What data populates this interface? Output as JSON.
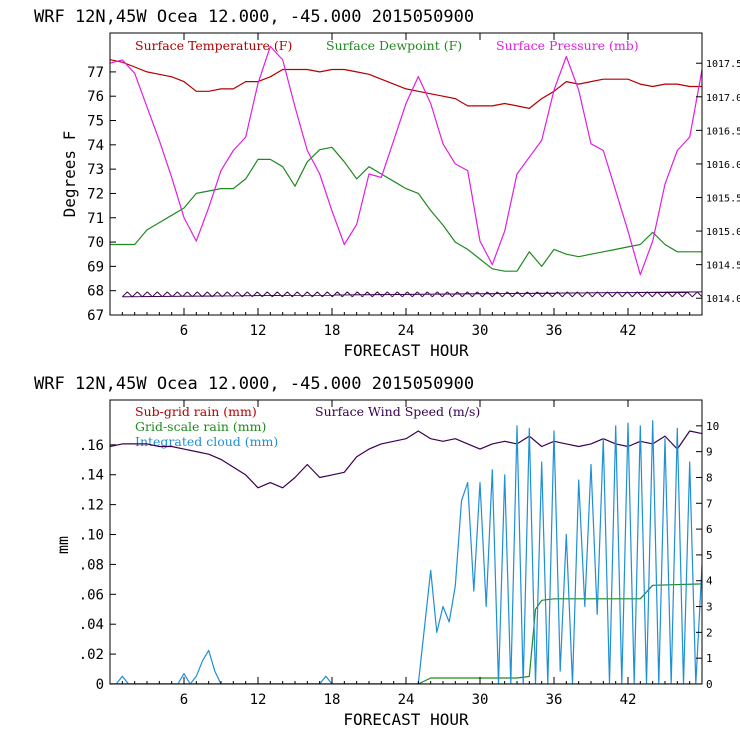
{
  "colors": {
    "axis": "#000000",
    "temperature": "#b30000",
    "dewpoint": "#1f8a1f",
    "pressure": "#e01ee0",
    "subgrid": "#b30000",
    "wind": "#3a0050",
    "gridscale": "#1f8a1f",
    "cloud": "#1f8fd6"
  },
  "chart_data": [
    {
      "type": "line",
      "title": "WRF   12N,45W Ocea  12.000, -45.000  2015050900",
      "xlabel": "FORECAST HOUR",
      "ylabel": "Degrees F",
      "xlim": [
        0,
        48
      ],
      "ylim": [
        67,
        78.6
      ],
      "xticks": [
        6,
        12,
        18,
        24,
        30,
        36,
        42
      ],
      "xtick_labels": [
        "6",
        "12",
        "18",
        "24",
        "30",
        "36",
        "42"
      ],
      "yticks": [
        67,
        68,
        69,
        70,
        71,
        72,
        73,
        74,
        75,
        76,
        77
      ],
      "ytick_labels": [
        "67",
        "68",
        "69",
        "70",
        "71",
        "72",
        "73",
        "74",
        "75",
        "76",
        "77"
      ],
      "y2lim": [
        1013.75,
        1017.95
      ],
      "y2ticks": [
        1014.0,
        1014.5,
        1015.0,
        1015.5,
        1016.0,
        1016.5,
        1017.0,
        1017.5
      ],
      "y2tick_labels": [
        "1014.0",
        "1014.5",
        "1015.0",
        "1015.5",
        "1016.0",
        "1016.5",
        "1017.0",
        "1017.5"
      ],
      "legend": [
        {
          "label": "Surface Temperature (F)",
          "color": "#b30000"
        },
        {
          "label": "Surface Dewpoint (F)",
          "color": "#1f8a1f"
        },
        {
          "label": "Surface Pressure (mb)",
          "color": "#e01ee0"
        }
      ],
      "series": [
        {
          "name": "Surface Temperature (F)",
          "axis": "left",
          "color": "#b30000",
          "x": [
            0,
            1,
            2,
            3,
            4,
            5,
            6,
            7,
            8,
            9,
            10,
            11,
            12,
            13,
            14,
            15,
            16,
            17,
            18,
            19,
            20,
            21,
            22,
            23,
            24,
            25,
            26,
            27,
            28,
            29,
            30,
            31,
            32,
            33,
            34,
            35,
            36,
            37,
            38,
            39,
            40,
            41,
            42,
            43,
            44,
            45,
            46,
            47,
            48
          ],
          "values": [
            77.5,
            77.4,
            77.2,
            77.0,
            76.9,
            76.8,
            76.6,
            76.2,
            76.2,
            76.3,
            76.3,
            76.6,
            76.6,
            76.8,
            77.1,
            77.1,
            77.1,
            77.0,
            77.1,
            77.1,
            77.0,
            76.9,
            76.7,
            76.5,
            76.3,
            76.2,
            76.1,
            76.0,
            75.9,
            75.6,
            75.6,
            75.6,
            75.7,
            75.6,
            75.5,
            75.9,
            76.2,
            76.6,
            76.5,
            76.6,
            76.7,
            76.7,
            76.7,
            76.5,
            76.4,
            76.5,
            76.5,
            76.4,
            76.4
          ]
        },
        {
          "name": "Surface Dewpoint (F)",
          "axis": "left",
          "color": "#1f8a1f",
          "x": [
            0,
            1,
            2,
            3,
            4,
            5,
            6,
            7,
            8,
            9,
            10,
            11,
            12,
            13,
            14,
            15,
            16,
            17,
            18,
            19,
            20,
            21,
            22,
            23,
            24,
            25,
            26,
            27,
            28,
            29,
            30,
            31,
            32,
            33,
            34,
            35,
            36,
            37,
            38,
            39,
            40,
            41,
            42,
            43,
            44,
            45,
            46,
            47,
            48
          ],
          "values": [
            69.9,
            69.9,
            69.9,
            70.5,
            70.8,
            71.1,
            71.4,
            72.0,
            72.1,
            72.2,
            72.2,
            72.6,
            73.4,
            73.4,
            73.1,
            72.3,
            73.3,
            73.8,
            73.9,
            73.3,
            72.6,
            73.1,
            72.8,
            72.5,
            72.2,
            72.0,
            71.3,
            70.7,
            70.0,
            69.7,
            69.3,
            68.9,
            68.8,
            68.8,
            69.6,
            69.0,
            69.7,
            69.5,
            69.4,
            69.5,
            69.6,
            69.7,
            69.8,
            69.9,
            70.4,
            69.9,
            69.6,
            69.6,
            69.6
          ]
        },
        {
          "name": "Surface Pressure (mb)",
          "axis": "right",
          "color": "#e01ee0",
          "x": [
            0,
            1,
            2,
            3,
            4,
            5,
            6,
            7,
            8,
            9,
            10,
            11,
            12,
            13,
            14,
            15,
            16,
            17,
            18,
            19,
            20,
            21,
            22,
            23,
            24,
            25,
            26,
            27,
            28,
            29,
            30,
            31,
            32,
            33,
            34,
            35,
            36,
            37,
            38,
            39,
            40,
            41,
            42,
            43,
            44,
            45,
            46,
            47,
            48
          ],
          "values": [
            1017.5,
            1017.55,
            1017.35,
            1016.85,
            1016.35,
            1015.8,
            1015.2,
            1014.85,
            1015.35,
            1015.9,
            1016.2,
            1016.4,
            1017.2,
            1017.75,
            1017.55,
            1016.85,
            1016.2,
            1015.85,
            1015.3,
            1014.8,
            1015.1,
            1015.85,
            1015.8,
            1016.35,
            1016.9,
            1017.3,
            1016.9,
            1016.3,
            1016.0,
            1015.9,
            1014.85,
            1014.5,
            1015.0,
            1015.85,
            1016.1,
            1016.35,
            1017.1,
            1017.6,
            1017.1,
            1016.3,
            1016.2,
            1015.6,
            1015.0,
            1014.35,
            1014.85,
            1015.7,
            1016.2,
            1016.4,
            1017.4
          ]
        },
        {
          "name": "Hatched base band",
          "axis": "left",
          "color": "#3a0050",
          "x": [
            1,
            48
          ],
          "values": [
            67.75,
            67.95
          ]
        }
      ]
    },
    {
      "type": "line",
      "title": "WRF   12N,45W Ocea  12.000, -45.000  2015050900",
      "xlabel": "FORECAST HOUR",
      "ylabel": "mm",
      "xlim": [
        0,
        48
      ],
      "ylim": [
        0,
        0.19
      ],
      "xticks": [
        6,
        12,
        18,
        24,
        30,
        36,
        42
      ],
      "xtick_labels": [
        "6",
        "12",
        "18",
        "24",
        "30",
        "36",
        "42"
      ],
      "yticks": [
        0,
        0.02,
        0.04,
        0.06,
        0.08,
        0.1,
        0.12,
        0.14,
        0.16
      ],
      "ytick_labels": [
        "0",
        ".02",
        ".04",
        ".06",
        ".08",
        ".10",
        ".12",
        ".14",
        ".16"
      ],
      "y2lim": [
        0,
        11
      ],
      "y2ticks": [
        0,
        1,
        2,
        3,
        4,
        5,
        6,
        7,
        8,
        9,
        10
      ],
      "y2tick_labels": [
        "0",
        "1",
        "2",
        "3",
        "4",
        "5",
        "6",
        "7",
        "8",
        "9",
        "10"
      ],
      "legend": [
        {
          "label": "Sub-grid rain (mm)",
          "color": "#b30000"
        },
        {
          "label": "Surface Wind Speed (m/s)",
          "color": "#3a0050"
        },
        {
          "label": "Grid-scale rain (mm)",
          "color": "#1f8a1f"
        },
        {
          "label": "Integrated cloud (mm)",
          "color": "#1f8fd6"
        }
      ],
      "series": [
        {
          "name": "Sub-grid rain (mm)",
          "axis": "left",
          "color": "#b30000",
          "x": [
            0,
            48
          ],
          "values": [
            0,
            0
          ]
        },
        {
          "name": "Grid-scale rain (mm)",
          "axis": "left",
          "color": "#1f8a1f",
          "x": [
            0,
            25,
            26,
            33,
            34,
            34.5,
            35,
            36,
            43,
            44,
            48
          ],
          "values": [
            0,
            0,
            0.004,
            0.004,
            0.005,
            0.05,
            0.056,
            0.057,
            0.057,
            0.066,
            0.067
          ]
        },
        {
          "name": "Surface Wind Speed (m/s)",
          "axis": "right",
          "color": "#3a0050",
          "x": [
            0,
            1,
            2,
            3,
            4,
            5,
            6,
            7,
            8,
            9,
            10,
            11,
            12,
            13,
            14,
            15,
            16,
            17,
            18,
            19,
            20,
            21,
            22,
            23,
            24,
            25,
            26,
            27,
            28,
            29,
            30,
            31,
            32,
            33,
            34,
            35,
            36,
            37,
            38,
            39,
            40,
            41,
            42,
            43,
            44,
            45,
            46,
            47,
            48
          ],
          "values": [
            9.2,
            9.3,
            9.3,
            9.3,
            9.2,
            9.2,
            9.1,
            9.0,
            8.9,
            8.7,
            8.4,
            8.1,
            7.6,
            7.8,
            7.6,
            8.0,
            8.5,
            8.0,
            8.1,
            8.2,
            8.8,
            9.1,
            9.3,
            9.4,
            9.5,
            9.8,
            9.5,
            9.4,
            9.5,
            9.3,
            9.1,
            9.3,
            9.4,
            9.3,
            9.6,
            9.2,
            9.4,
            9.3,
            9.2,
            9.3,
            9.5,
            9.3,
            9.2,
            9.4,
            9.3,
            9.6,
            9.1,
            9.8,
            9.7
          ]
        },
        {
          "name": "Integrated cloud (mm)",
          "axis": "right",
          "color": "#1f8fd6",
          "x": [
            0,
            0.5,
            1,
            1.5,
            2,
            5.5,
            6,
            6.5,
            7,
            7.5,
            8,
            8.5,
            9,
            9.5,
            10,
            17,
            17.5,
            18,
            25,
            26,
            26.5,
            27,
            27.5,
            28,
            28.5,
            29,
            29.5,
            30,
            30.5,
            31,
            31.5,
            32,
            32.5,
            33,
            33.5,
            34,
            34.5,
            35,
            35.5,
            36,
            36.5,
            37,
            37.5,
            38,
            38.5,
            39,
            39.5,
            40,
            40.5,
            41,
            41.5,
            42,
            42.5,
            43,
            43.5,
            44,
            44.5,
            45,
            45.5,
            46,
            46.5,
            47,
            47.5,
            48
          ],
          "values": [
            0,
            0,
            0.3,
            0,
            0,
            0,
            0.4,
            0,
            0.3,
            0.9,
            1.3,
            0.5,
            0,
            0,
            0,
            0,
            0.3,
            0,
            0,
            4.4,
            2.0,
            3.0,
            2.4,
            3.8,
            7.1,
            7.8,
            3.6,
            7.8,
            3.0,
            8.3,
            0,
            8.1,
            0,
            10.0,
            0,
            9.9,
            0,
            8.6,
            0,
            9.8,
            0.5,
            5.8,
            0,
            7.9,
            3.0,
            8.5,
            2.7,
            9.5,
            0,
            10.0,
            0,
            10.1,
            0,
            10.0,
            0,
            10.2,
            0,
            9.5,
            0,
            9.9,
            0,
            8.6,
            0,
            4.6
          ]
        }
      ]
    }
  ]
}
